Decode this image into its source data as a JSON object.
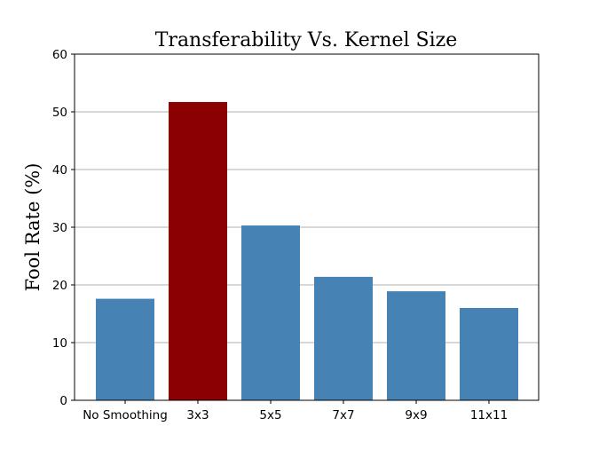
{
  "chart_data": {
    "type": "bar",
    "title": "Transferability Vs. Kernel Size",
    "xlabel": "",
    "ylabel": "Fool Rate (%)",
    "categories": [
      "No Smoothing",
      "3x3",
      "5x5",
      "7x7",
      "9x9",
      "11x11"
    ],
    "values": [
      17.6,
      51.7,
      30.3,
      21.4,
      18.9,
      16.0
    ],
    "bar_colors": [
      "#4682b4",
      "#8b0000",
      "#4682b4",
      "#4682b4",
      "#4682b4",
      "#4682b4"
    ],
    "ylim": [
      0,
      60
    ],
    "yticks": [
      0,
      10,
      20,
      30,
      40,
      50,
      60
    ],
    "grid": "horizontal",
    "legend": "none"
  }
}
